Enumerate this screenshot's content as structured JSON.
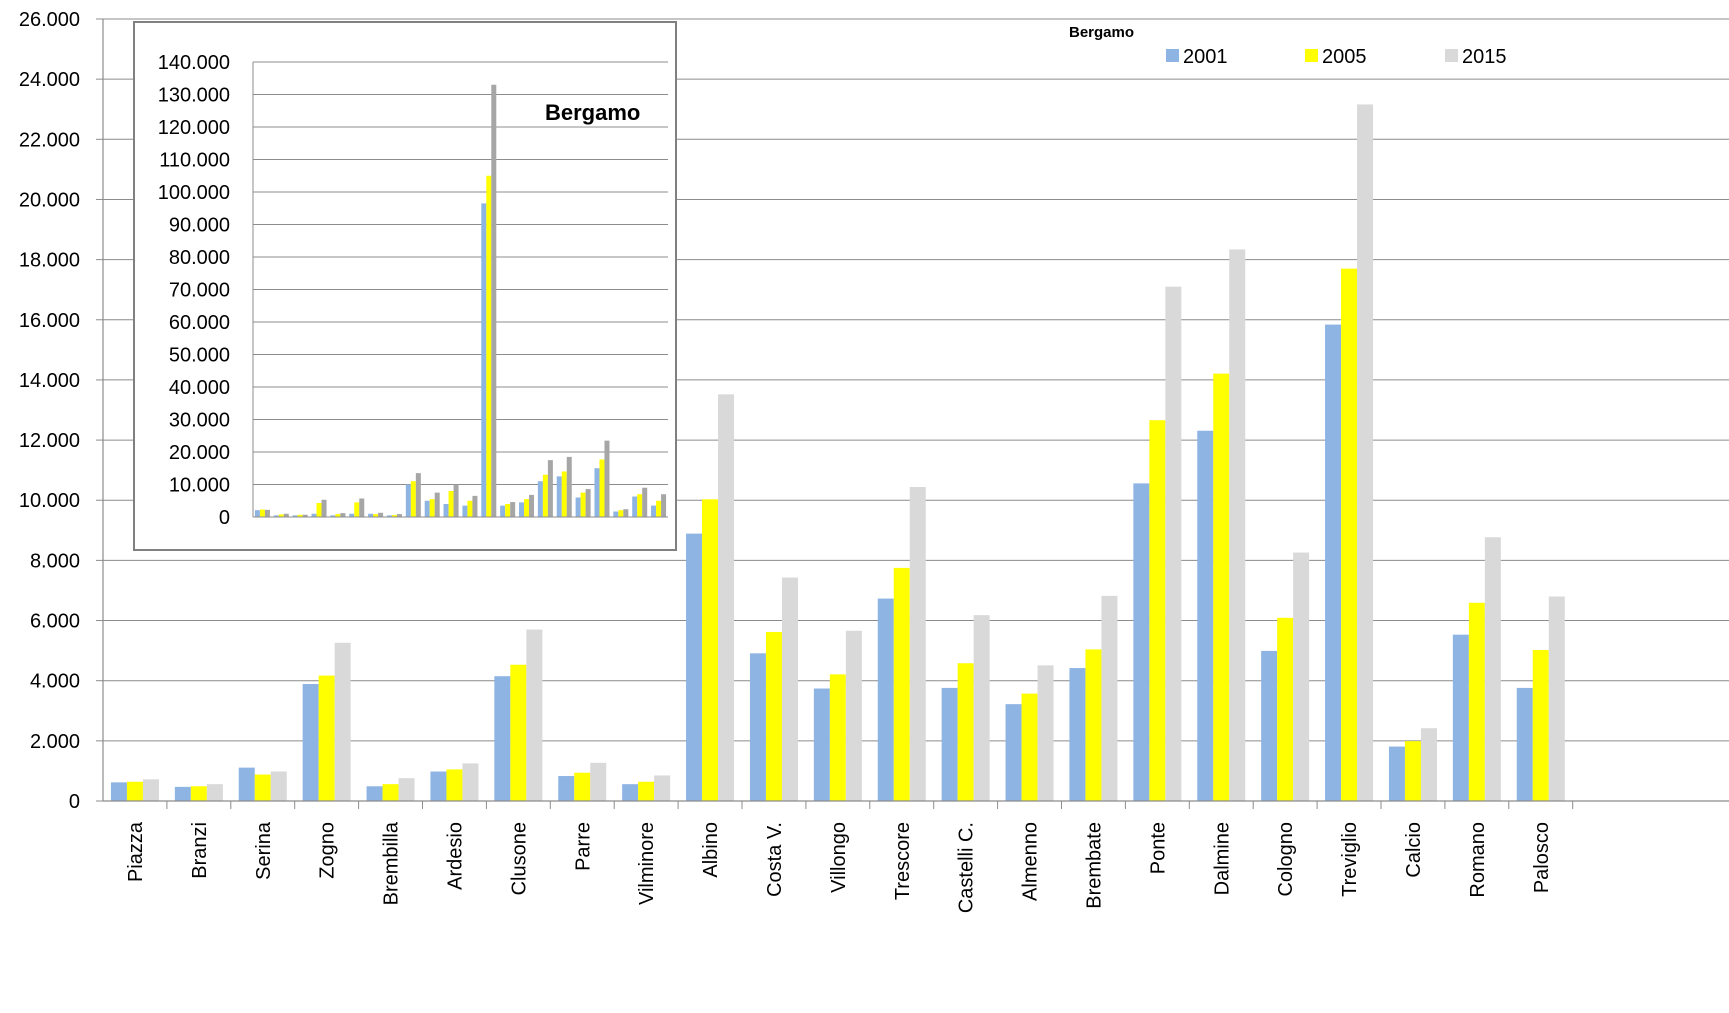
{
  "chart_data": [
    {
      "type": "bar",
      "title": "Bergamo",
      "xlabel": "",
      "ylabel": "",
      "ylim": [
        0,
        26000
      ],
      "y_ticks": [
        "0",
        "2.000",
        "4.000",
        "6.000",
        "8.000",
        "10.000",
        "12.000",
        "14.000",
        "16.000",
        "18.000",
        "20.000",
        "22.000",
        "24.000",
        "26.000"
      ],
      "grid": true,
      "legend_placement": "top-right",
      "categories": [
        "Piazza",
        "Branzi",
        "Serina",
        "Zogno",
        "Brembilla",
        "Ardesio",
        "Clusone",
        "Parre",
        "Vilminore",
        "Albino",
        "Costa V.",
        "Villongo",
        "Trescore",
        "Castelli C.",
        "Almenno",
        "Brembate",
        "Ponte",
        "Dalmine",
        "Cologno",
        "Treviglio",
        "Calcio",
        "Romano",
        "Palosco"
      ],
      "series": [
        {
          "name": "2001",
          "color": "#8EB4E3",
          "values": [
            620,
            470,
            1110,
            3890,
            490,
            980,
            4150,
            830,
            560,
            8890,
            4910,
            3740,
            6730,
            3760,
            3220,
            4420,
            10560,
            12310,
            4990,
            15840,
            1810,
            5530,
            3760
          ]
        },
        {
          "name": "2005",
          "color": "#FFFF00",
          "values": [
            640,
            490,
            880,
            4170,
            560,
            1050,
            4530,
            940,
            640,
            10030,
            5620,
            4210,
            7750,
            4580,
            3570,
            5040,
            12660,
            14210,
            6090,
            17700,
            1990,
            6590,
            5020
          ]
        },
        {
          "name": "2015",
          "color": "#D9D9D9",
          "values": [
            720,
            560,
            980,
            5260,
            760,
            1250,
            5700,
            1270,
            850,
            13520,
            7430,
            5660,
            10440,
            6180,
            4510,
            6820,
            17100,
            18340,
            8260,
            23160,
            2420,
            8770,
            6800
          ]
        }
      ]
    },
    {
      "type": "bar",
      "title": "Bergamo",
      "xlabel": "",
      "ylabel": "",
      "ylim": [
        0,
        140000
      ],
      "y_ticks": [
        "0",
        "10.000",
        "20.000",
        "30.000",
        "40.000",
        "50.000",
        "60.000",
        "70.000",
        "80.000",
        "90.000",
        "100.000",
        "110.000",
        "120.000",
        "130.000",
        "140.000"
      ],
      "grid": true,
      "series": [
        {
          "name": "2001",
          "color": "#8EB4E3",
          "values": [
            2100,
            500,
            500,
            1000,
            500,
            1000,
            1000,
            500,
            10000,
            5000,
            4000,
            3500,
            96500,
            3500,
            4500,
            11000,
            12500,
            6000,
            15000,
            1700,
            6300,
            3500
          ]
        },
        {
          "name": "2005",
          "color": "#FFFF00",
          "values": [
            2300,
            800,
            700,
            4300,
            900,
            4500,
            900,
            600,
            11000,
            5500,
            8000,
            5000,
            105000,
            4000,
            5500,
            13000,
            14000,
            7500,
            17700,
            2100,
            7000,
            5000
          ]
        },
        {
          "name": "2015",
          "color": "#A6A6A6",
          "values": [
            2200,
            1000,
            700,
            5300,
            1200,
            5700,
            1300,
            900,
            13500,
            7500,
            10000,
            6500,
            133000,
            4600,
            6800,
            17500,
            18500,
            8600,
            23500,
            2400,
            9000,
            7000
          ]
        }
      ]
    }
  ]
}
